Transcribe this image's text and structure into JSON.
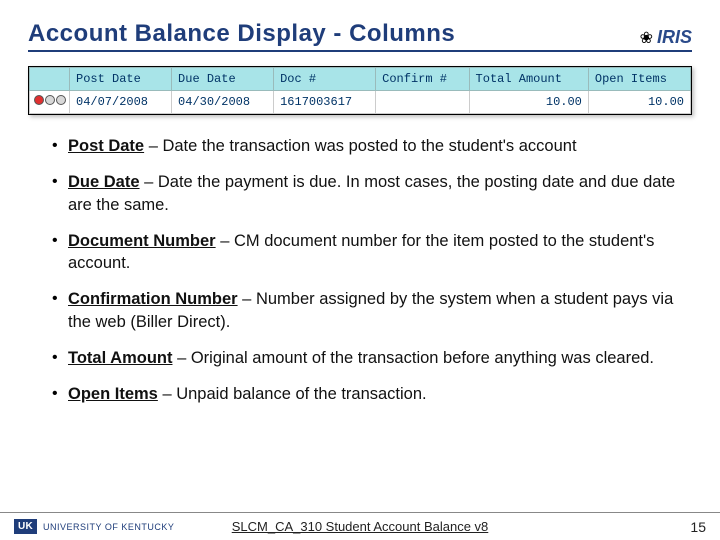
{
  "title": "Account Balance Display - Columns",
  "logo": {
    "mark": "IRIS",
    "glyph": "❀"
  },
  "table": {
    "headers": [
      "",
      "Post Date",
      "Due Date",
      "Doc #",
      "Confirm #",
      "Total Amount",
      "Open Items"
    ],
    "row": {
      "post_date": "04/07/2008",
      "due_date": "04/30/2008",
      "doc": "1617003617",
      "confirm": "",
      "total": "10.00",
      "open": "10.00"
    },
    "header_bg": "#a8e4e8",
    "text_color": "#003366"
  },
  "bullets": [
    {
      "term": "Post Date",
      "desc": " – Date the transaction was posted to the student's account"
    },
    {
      "term": "Due Date",
      "desc": " – Date the payment is due.  In most cases, the posting date and due date are the same."
    },
    {
      "term": "Document Number",
      "desc": " – CM document number for the item posted to the student's account."
    },
    {
      "term": "Confirmation Number",
      "desc": " – Number assigned by the system when a student pays via the web (Biller Direct)."
    },
    {
      "term": "Total Amount",
      "desc": " – Original amount of the transaction before anything was cleared."
    },
    {
      "term": "Open Items",
      "desc": " – Unpaid balance of the transaction."
    }
  ],
  "footer": {
    "badge": "UK",
    "org": "UNIVERSITY OF KENTUCKY",
    "center": "SLCM_CA_310 Student Account Balance v8",
    "page": "15"
  },
  "colors": {
    "accent": "#1f3d7a"
  }
}
